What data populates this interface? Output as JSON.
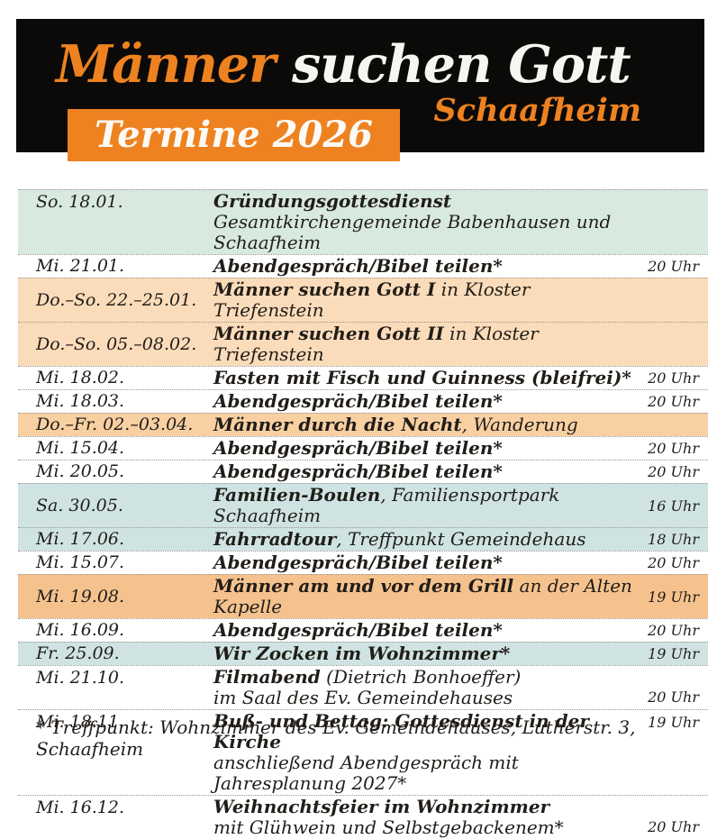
{
  "header": {
    "title_accent": "Männer",
    "title_rest": " suchen Gott",
    "subtitle": "Schaafheim",
    "badge": "Termine 2026"
  },
  "colors": {
    "accent_orange": "#ee8220",
    "band_black": "#0c0a08",
    "white": "#ffffff",
    "green": "#d8e9df",
    "peach": "#fbdcba",
    "orange": "#f8d0a2",
    "deep_orange": "#f5c28e",
    "teal": "#cfe4e2",
    "text": "#211d19"
  },
  "table": {
    "rows": [
      {
        "date": "So. 18.01.",
        "bold": "Gründungsgottesdienst",
        "rest": "",
        "line2": "Gesamtkirchengemeinde Babenhausen und Schaafheim",
        "time": "",
        "time_pos": "center",
        "bg": "green"
      },
      {
        "date": "Mi. 21.01.",
        "bold": "Abendgespräch/Bibel teilen*",
        "rest": "",
        "line2": "",
        "time": "20 Uhr",
        "time_pos": "center",
        "bg": "white"
      },
      {
        "date": "Do.–So. 22.–25.01.",
        "bold": "Männer suchen Gott I",
        "rest": " in Kloster Triefenstein",
        "line2": "",
        "time": "",
        "time_pos": "center",
        "bg": "peach"
      },
      {
        "date": "Do.–So. 05.–08.02.",
        "bold": "Männer suchen Gott II",
        "rest": " in Kloster Triefenstein",
        "line2": "",
        "time": "",
        "time_pos": "center",
        "bg": "peach"
      },
      {
        "date": "Mi. 18.02.",
        "bold": "Fasten mit Fisch und Guinness (bleifrei)*",
        "rest": "",
        "line2": "",
        "time": "20 Uhr",
        "time_pos": "center",
        "bg": "white"
      },
      {
        "date": "Mi. 18.03.",
        "bold": "Abendgespräch/Bibel teilen*",
        "rest": "",
        "line2": "",
        "time": "20 Uhr",
        "time_pos": "center",
        "bg": "white"
      },
      {
        "date": "Do.–Fr. 02.–03.04.",
        "bold": "Männer durch die Nacht",
        "rest": ", Wanderung",
        "line2": "",
        "time": "",
        "time_pos": "center",
        "bg": "orange"
      },
      {
        "date": "Mi. 15.04.",
        "bold": "Abendgespräch/Bibel teilen*",
        "rest": "",
        "line2": "",
        "time": "20 Uhr",
        "time_pos": "center",
        "bg": "white"
      },
      {
        "date": "Mi. 20.05.",
        "bold": "Abendgespräch/Bibel teilen*",
        "rest": "",
        "line2": "",
        "time": "20 Uhr",
        "time_pos": "center",
        "bg": "white"
      },
      {
        "date": "Sa. 30.05.",
        "bold": "Familien-Boulen",
        "rest": ", Familiensportpark Schaafheim",
        "line2": "",
        "time": "16 Uhr",
        "time_pos": "center",
        "bg": "teal"
      },
      {
        "date": "Mi. 17.06.",
        "bold": "Fahrradtour",
        "rest": ", Treffpunkt Gemeindehaus",
        "line2": "",
        "time": "18 Uhr",
        "time_pos": "center",
        "bg": "teal"
      },
      {
        "date": "Mi. 15.07.",
        "bold": "Abendgespräch/Bibel teilen*",
        "rest": "",
        "line2": "",
        "time": "20 Uhr",
        "time_pos": "center",
        "bg": "white"
      },
      {
        "date": "Mi. 19.08.",
        "bold": "Männer am und vor dem Grill",
        "rest": " an der Alten Kapelle",
        "line2": "",
        "time": "19 Uhr",
        "time_pos": "center",
        "bg": "deep_orange"
      },
      {
        "date": "Mi. 16.09.",
        "bold": "Abendgespräch/Bibel teilen*",
        "rest": "",
        "line2": "",
        "time": "20 Uhr",
        "time_pos": "center",
        "bg": "white"
      },
      {
        "date": "Fr. 25.09.",
        "bold": "Wir Zocken im Wohnzimmer*",
        "rest": "",
        "line2": "",
        "time": "19 Uhr",
        "time_pos": "center",
        "bg": "teal"
      },
      {
        "date": "Mi. 21.10.",
        "bold": "Filmabend",
        "rest": " (Dietrich Bonhoeffer)",
        "line2": "im Saal des Ev. Gemeindehauses",
        "time": "20 Uhr",
        "time_pos": "bottom",
        "bg": "white"
      },
      {
        "date": "Mi. 18.11.",
        "bold": "Buß- und Bettag: Gottesdienst in der Kirche",
        "rest": "",
        "line2": "anschließend Abendgespräch mit Jahresplanung 2027*",
        "time": "19 Uhr",
        "time_pos": "top",
        "bg": "white"
      },
      {
        "date": "Mi. 16.12.",
        "bold": "Weihnachtsfeier im Wohnzimmer",
        "rest": "",
        "line2": "mit Glühwein und Selbstgebackenem*",
        "time": "20 Uhr",
        "time_pos": "bottom",
        "bg": "white"
      }
    ]
  },
  "footer": {
    "note": "* Treffpunkt: Wohnzimmer des Ev. Gemeindehauses, Lutherstr. 3, Schaafheim"
  }
}
